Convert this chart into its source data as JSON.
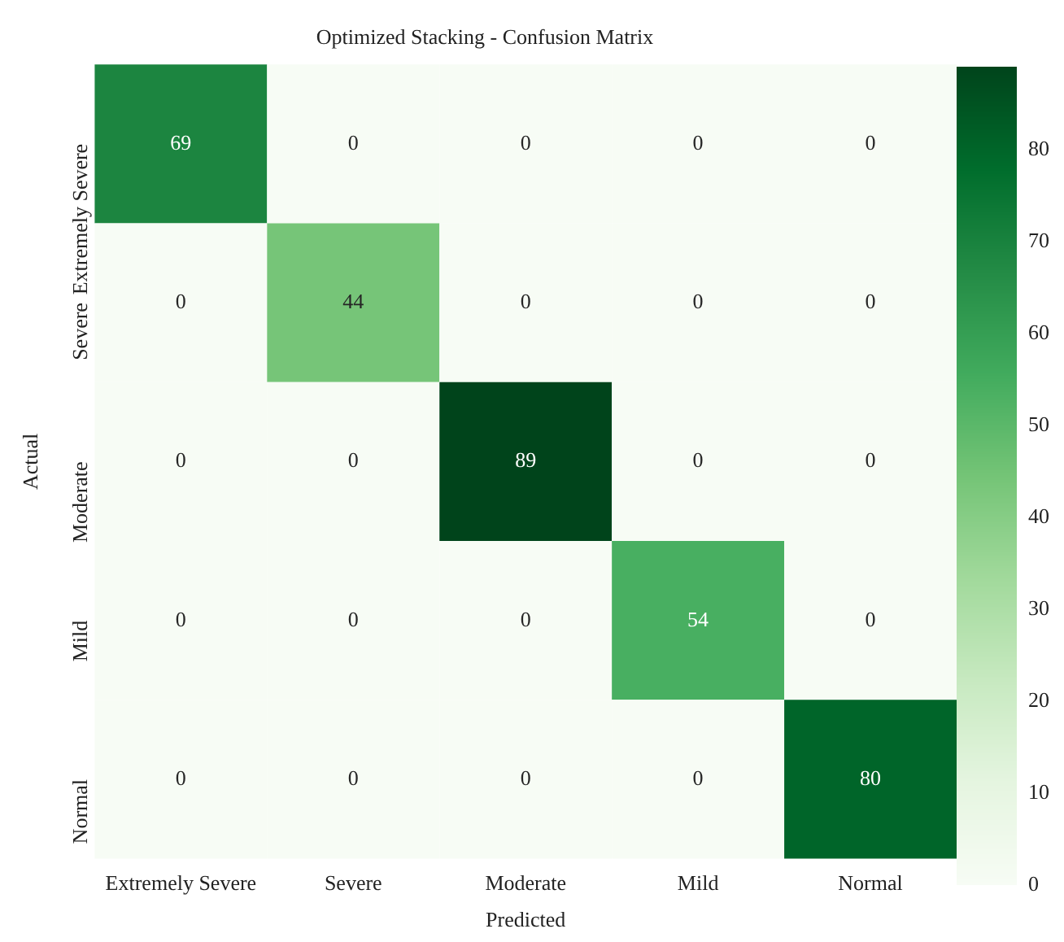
{
  "chart_data": {
    "type": "heatmap",
    "title": "Optimized Stacking - Confusion Matrix",
    "xlabel": "Predicted",
    "ylabel": "Actual",
    "categories": [
      "Extremely Severe",
      "Severe",
      "Moderate",
      "Mild",
      "Normal"
    ],
    "y_categories": [
      "Extremely Severe",
      "Severe",
      "Moderate",
      "Mild",
      "Normal"
    ],
    "cells": [
      [
        69,
        0,
        0,
        0,
        0
      ],
      [
        0,
        44,
        0,
        0,
        0
      ],
      [
        0,
        0,
        89,
        0,
        0
      ],
      [
        0,
        0,
        0,
        54,
        0
      ],
      [
        0,
        0,
        0,
        0,
        80
      ]
    ],
    "data_labels": true,
    "clim": [
      0,
      89
    ],
    "cticks": [
      0,
      10,
      20,
      30,
      40,
      50,
      60,
      70,
      80
    ]
  }
}
